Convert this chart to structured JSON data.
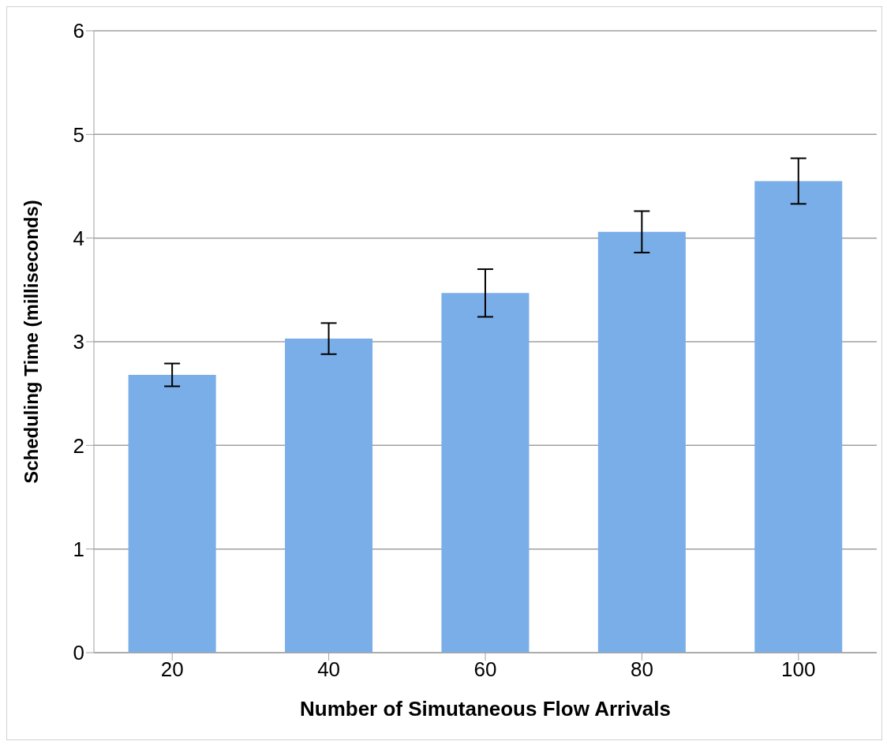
{
  "chart_data": {
    "type": "bar",
    "xlabel": "Number of Simutaneous Flow Arrivals",
    "ylabel": "Scheduling Time (milliseconds)",
    "categories": [
      "20",
      "40",
      "60",
      "80",
      "100"
    ],
    "series": [
      {
        "color": "#7aaee8",
        "values": [
          2.68,
          3.03,
          3.47,
          4.06,
          4.55
        ],
        "errors": [
          0.11,
          0.15,
          0.23,
          0.2,
          0.22
        ]
      }
    ],
    "ylim": [
      0,
      6
    ],
    "yticks": [
      0,
      1,
      2,
      3,
      4,
      5,
      6
    ],
    "grid": "y"
  }
}
